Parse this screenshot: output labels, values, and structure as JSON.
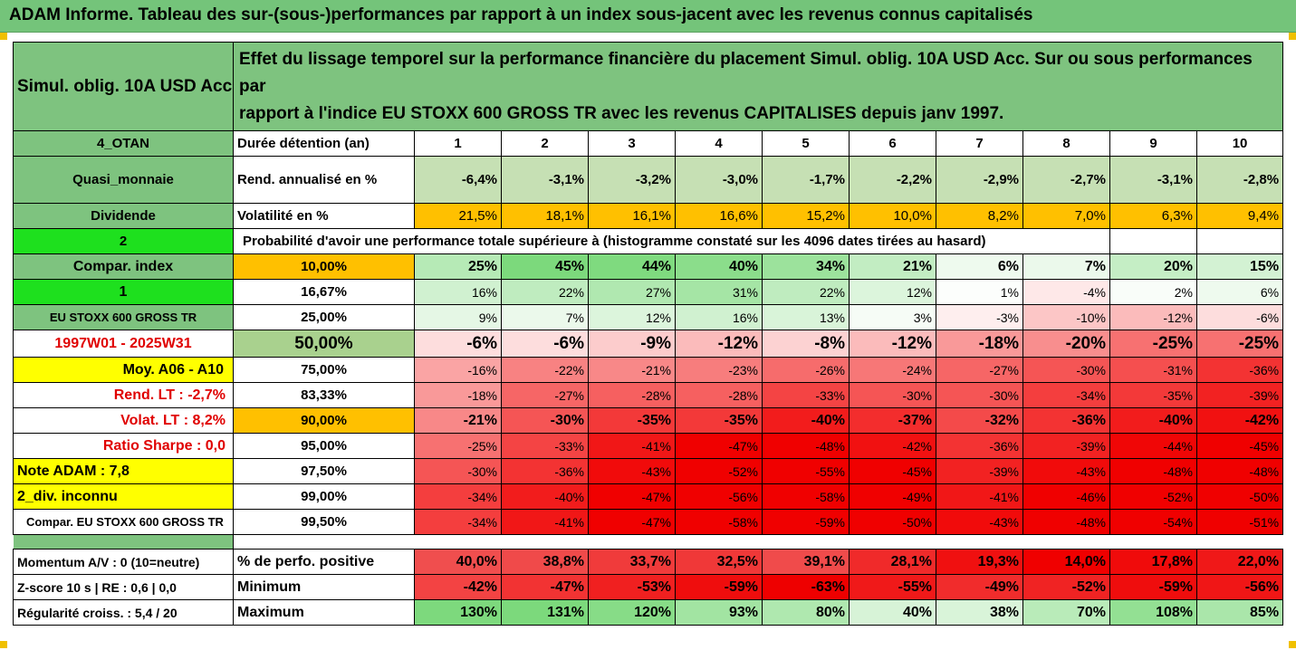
{
  "title": "ADAM Informe. Tableau des sur-(sous-)performances par rapport à un index sous-jacent avec les revenus connus capitalisés",
  "fund_name": "Simul. oblig. 10A USD Acc",
  "description_line1": "Effet du lissage temporel sur la performance financière du placement Simul. oblig. 10A USD Acc. Sur ou sous performances par",
  "description_line2": "rapport à l'indice EU STOXX 600 GROSS TR avec les revenus CAPITALISES depuis janv 1997.",
  "colors": {
    "header_green": "#74c47a",
    "label_green": "#7ec37f",
    "bright_green": "#1ee01e",
    "yellow": "#ffff00",
    "orange": "#ffc000",
    "red": "#ff0000"
  },
  "horizon": {
    "label_left": "4_OTAN",
    "label": "Durée détention (an)",
    "years": [
      "1",
      "2",
      "3",
      "4",
      "5",
      "6",
      "7",
      "8",
      "9",
      "10"
    ]
  },
  "rend": {
    "label_left": "Quasi_monnaie",
    "label": "Rend. annualisé en %",
    "values": [
      "-6,4%",
      "-3,1%",
      "-3,2%",
      "-3,0%",
      "-1,7%",
      "-2,2%",
      "-2,9%",
      "-2,7%",
      "-3,1%",
      "-2,8%"
    ]
  },
  "vol": {
    "label_left": "Dividende",
    "label": "Volatilité en %",
    "values": [
      "21,5%",
      "18,1%",
      "16,1%",
      "16,6%",
      "15,2%",
      "10,0%",
      "8,2%",
      "7,0%",
      "6,3%",
      "9,4%"
    ]
  },
  "prob_header": {
    "label_left": "2",
    "text": "Probabilité d'avoir une performance totale supérieure à (histogramme constaté sur les 4096 dates tirées au hasard)"
  },
  "rows": [
    {
      "left": "Compar. index",
      "pct": "10,00%",
      "values": [
        "25%",
        "45%",
        "44%",
        "40%",
        "34%",
        "21%",
        "6%",
        "7%",
        "20%",
        "15%"
      ]
    },
    {
      "left": "1",
      "pct": "16,67%",
      "values": [
        "16%",
        "22%",
        "27%",
        "31%",
        "22%",
        "12%",
        "1%",
        "-4%",
        "2%",
        "6%"
      ]
    },
    {
      "left": "EU STOXX 600 GROSS TR",
      "pct": "25,00%",
      "values": [
        "9%",
        "7%",
        "12%",
        "16%",
        "13%",
        "3%",
        "-3%",
        "-10%",
        "-12%",
        "-6%"
      ]
    },
    {
      "left": "1997W01 - 2025W31",
      "pct": "50,00%",
      "values": [
        "-6%",
        "-6%",
        "-9%",
        "-12%",
        "-8%",
        "-12%",
        "-18%",
        "-20%",
        "-25%",
        "-25%"
      ]
    },
    {
      "left": "Moy. A06 - A10",
      "pct": "75,00%",
      "values": [
        "-16%",
        "-22%",
        "-21%",
        "-23%",
        "-26%",
        "-24%",
        "-27%",
        "-30%",
        "-31%",
        "-36%"
      ]
    },
    {
      "left": "Rend. LT :   -2,7%",
      "pct": "83,33%",
      "values": [
        "-18%",
        "-27%",
        "-28%",
        "-28%",
        "-33%",
        "-30%",
        "-30%",
        "-34%",
        "-35%",
        "-39%"
      ]
    },
    {
      "left": "Volat. LT :   8,2%",
      "pct": "90,00%",
      "values": [
        "-21%",
        "-30%",
        "-35%",
        "-35%",
        "-40%",
        "-37%",
        "-32%",
        "-36%",
        "-40%",
        "-42%"
      ]
    },
    {
      "left": "Ratio Sharpe :   0,0",
      "pct": "95,00%",
      "values": [
        "-25%",
        "-33%",
        "-41%",
        "-47%",
        "-48%",
        "-42%",
        "-36%",
        "-39%",
        "-44%",
        "-45%"
      ]
    },
    {
      "left": "Note ADAM : 7,8",
      "pct": "97,50%",
      "values": [
        "-30%",
        "-36%",
        "-43%",
        "-52%",
        "-55%",
        "-45%",
        "-39%",
        "-43%",
        "-48%",
        "-48%"
      ]
    },
    {
      "left": "2_div. inconnu",
      "pct": "99,00%",
      "values": [
        "-34%",
        "-40%",
        "-47%",
        "-56%",
        "-58%",
        "-49%",
        "-41%",
        "-46%",
        "-52%",
        "-50%"
      ]
    },
    {
      "left": "Compar. EU STOXX 600 GROSS TR",
      "pct": "99,50%",
      "values": [
        "-34%",
        "-41%",
        "-47%",
        "-58%",
        "-59%",
        "-50%",
        "-43%",
        "-48%",
        "-54%",
        "-51%"
      ]
    }
  ],
  "stats": [
    {
      "left": "Momentum A/V : 0 (10=neutre)",
      "label": "% de perfo. positive",
      "values": [
        "40,0%",
        "38,8%",
        "33,7%",
        "32,5%",
        "39,1%",
        "28,1%",
        "19,3%",
        "14,0%",
        "17,8%",
        "22,0%"
      ]
    },
    {
      "left": "Z-score 10 s  |  RE : 0,6  |  0,0",
      "label": "Minimum",
      "values": [
        "-42%",
        "-47%",
        "-53%",
        "-59%",
        "-63%",
        "-55%",
        "-49%",
        "-52%",
        "-59%",
        "-56%"
      ]
    },
    {
      "left": "Régularité croiss. : 5,4 / 20",
      "label": "Maximum",
      "values": [
        "130%",
        "131%",
        "120%",
        "93%",
        "80%",
        "40%",
        "38%",
        "70%",
        "108%",
        "85%"
      ]
    }
  ]
}
